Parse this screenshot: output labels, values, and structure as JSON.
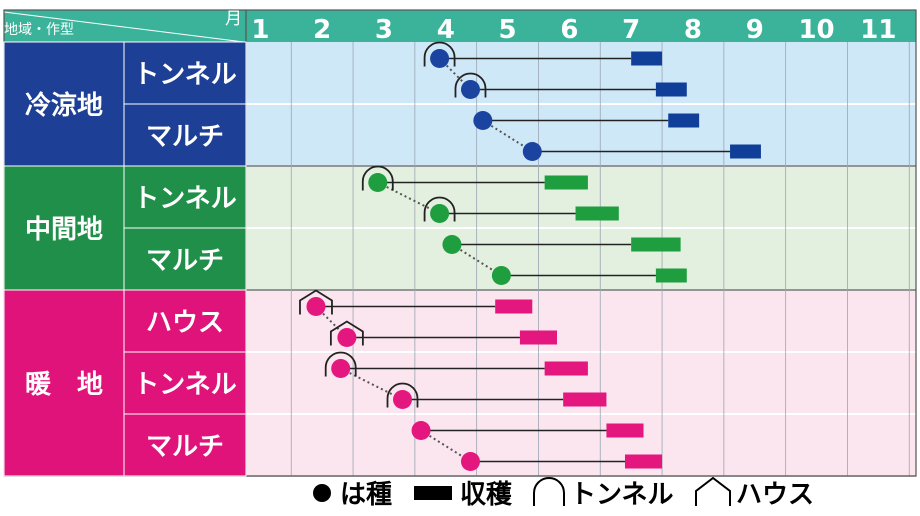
{
  "chart_data": {
    "type": "gantt",
    "header": {
      "corner_left": "地域・作型",
      "corner_right": "月"
    },
    "months": [
      "1",
      "2",
      "3",
      "4",
      "5",
      "6",
      "7",
      "8",
      "9",
      "10",
      "11"
    ],
    "regions": [
      {
        "name": "冷涼地",
        "color": "#1e3f96",
        "bg": "#cfe8f8",
        "point": "#1a44a0",
        "harvest": "#0f3f98",
        "methods": [
          {
            "name": "トンネル",
            "rows": [
              {
                "sow": 3.9,
                "end": 7.0,
                "harvest": [
                  7.0,
                  7.5
                ],
                "cover": "tunnel"
              },
              {
                "sow": 4.4,
                "end": 7.4,
                "harvest": [
                  7.4,
                  7.9
                ],
                "cover": "tunnel"
              }
            ]
          },
          {
            "name": "マルチ",
            "rows": [
              {
                "sow": 4.6,
                "end": 7.6,
                "harvest": [
                  7.6,
                  8.1
                ],
                "cover": ""
              },
              {
                "sow": 5.4,
                "end": 8.6,
                "harvest": [
                  8.6,
                  9.1
                ],
                "cover": ""
              }
            ]
          }
        ]
      },
      {
        "name": "中間地",
        "color": "#1f8f4a",
        "bg": "#e3efdf",
        "point": "#1e9e3e",
        "harvest": "#1e9e3e",
        "methods": [
          {
            "name": "トンネル",
            "rows": [
              {
                "sow": 2.9,
                "end": 5.6,
                "harvest": [
                  5.6,
                  6.3
                ],
                "cover": "tunnel"
              },
              {
                "sow": 3.9,
                "end": 6.1,
                "harvest": [
                  6.1,
                  6.8
                ],
                "cover": "tunnel"
              }
            ]
          },
          {
            "name": "マルチ",
            "rows": [
              {
                "sow": 4.1,
                "end": 7.0,
                "harvest": [
                  7.0,
                  7.8
                ],
                "cover": ""
              },
              {
                "sow": 4.9,
                "end": 7.4,
                "harvest": [
                  7.4,
                  7.9
                ],
                "cover": ""
              }
            ]
          }
        ]
      },
      {
        "name": "暖　地",
        "color": "#e0137a",
        "bg": "#fbe5ef",
        "point": "#e3177e",
        "harvest": "#e3177e",
        "methods": [
          {
            "name": "ハウス",
            "rows": [
              {
                "sow": 1.9,
                "end": 4.8,
                "harvest": [
                  4.8,
                  5.4
                ],
                "cover": "house"
              },
              {
                "sow": 2.4,
                "end": 5.2,
                "harvest": [
                  5.2,
                  5.8
                ],
                "cover": "house"
              }
            ]
          },
          {
            "name": "トンネル",
            "rows": [
              {
                "sow": 2.3,
                "end": 5.6,
                "harvest": [
                  5.6,
                  6.3
                ],
                "cover": "tunnel"
              },
              {
                "sow": 3.3,
                "end": 5.9,
                "harvest": [
                  5.9,
                  6.6
                ],
                "cover": "tunnel"
              }
            ]
          },
          {
            "name": "マルチ",
            "rows": [
              {
                "sow": 3.6,
                "end": 6.6,
                "harvest": [
                  6.6,
                  7.2
                ],
                "cover": ""
              },
              {
                "sow": 4.4,
                "end": 6.9,
                "harvest": [
                  6.9,
                  7.5
                ],
                "cover": ""
              }
            ]
          }
        ]
      }
    ],
    "legend": [
      {
        "symbol": "dot",
        "label": "は種"
      },
      {
        "symbol": "bar",
        "label": "収穫"
      },
      {
        "symbol": "tunnel",
        "label": "トンネル"
      },
      {
        "symbol": "house",
        "label": "ハウス"
      }
    ],
    "colors": {
      "header": "#3bb39a",
      "grid": "#9aa6b2",
      "dotted": "#555555"
    }
  }
}
